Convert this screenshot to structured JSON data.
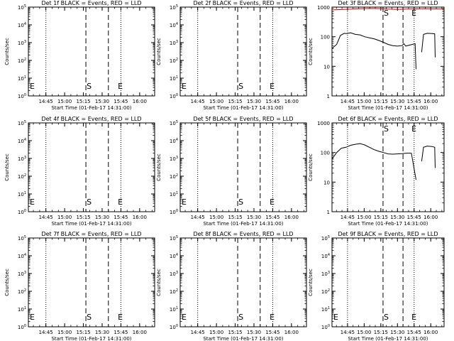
{
  "chart_data": [
    {
      "type": "line",
      "title": "Det 1f BLACK = Events, RED = LLD",
      "ylabel": "Counts/sec",
      "xlabel": "Start Time (01-Feb-17 14:31:00)",
      "yscale": "log",
      "ylim": [
        1,
        100000
      ],
      "ytick_labels": [
        "10^0",
        "10^1",
        "10^2",
        "10^3",
        "10^4",
        "10^5"
      ],
      "xtick_labels": [
        "14:45",
        "15:00",
        "15:15",
        "15:30",
        "15:45",
        "16:00"
      ],
      "dotted_lines_at": [
        "14:45",
        "15:45"
      ],
      "dashed_lines_at": [
        "15:17",
        "15:35"
      ],
      "markers": [
        {
          "label": "E",
          "at": "14:31"
        },
        {
          "label": "S",
          "at": "15:17"
        },
        {
          "label": "E",
          "at": "15:42"
        }
      ],
      "series": []
    },
    {
      "type": "line",
      "title": "Det 2f BLACK = Events, RED = LLD",
      "ylabel": "Counts/sec",
      "xlabel": "Start Time (01-Feb-17 14:31:00)",
      "yscale": "log",
      "ylim": [
        1,
        100000
      ],
      "ytick_labels": [
        "10^0",
        "10^1",
        "10^2",
        "10^3",
        "10^4",
        "10^5"
      ],
      "xtick_labels": [
        "14:45",
        "15:00",
        "15:15",
        "15:30",
        "15:45",
        "16:00"
      ],
      "dotted_lines_at": [
        "14:45",
        "15:45"
      ],
      "dashed_lines_at": [
        "15:17",
        "15:35"
      ],
      "markers": [
        {
          "label": "E",
          "at": "14:31"
        },
        {
          "label": "S",
          "at": "15:17"
        },
        {
          "label": "E",
          "at": "15:42"
        }
      ],
      "series": []
    },
    {
      "type": "line",
      "title": "Det 3f BLACK = Events, RED = LLD",
      "ylabel": "Counts/sec",
      "xlabel": "Start Time (01-Feb-17 14:31:00)",
      "yscale": "log",
      "ylim": [
        1,
        1000
      ],
      "ytick_labels": [
        "1",
        "10",
        "100",
        "1000"
      ],
      "xtick_labels": [
        "14:45",
        "15:00",
        "15:15",
        "15:30",
        "15:45",
        "16:00"
      ],
      "dotted_lines_at": [
        "14:45",
        "15:45"
      ],
      "dashed_lines_at": [
        "15:17",
        "15:35"
      ],
      "markers": [
        {
          "label": "S",
          "at": "15:17"
        },
        {
          "label": "E",
          "at": "15:42"
        }
      ],
      "series": [
        {
          "name": "BLACK",
          "color": "#000000",
          "segments": [
            [
              [
                0,
                10,
                40
              ],
              [
                0.5,
                10,
                55
              ],
              [
                0.9,
                10,
                110
              ],
              [
                1.3,
                10,
                130
              ],
              [
                1.5,
                10,
                128
              ],
              [
                2.0,
                10,
                135
              ],
              [
                2.5,
                10,
                120
              ],
              [
                3.0,
                10,
                115
              ],
              [
                3.5,
                10,
                100
              ],
              [
                4.0,
                10,
                92
              ],
              [
                4.5,
                10,
                85
              ],
              [
                5.0,
                10,
                75
              ],
              [
                5.5,
                10,
                65
              ],
              [
                6.0,
                10,
                55
              ],
              [
                6.5,
                10,
                50
              ],
              [
                7.0,
                10,
                48
              ],
              [
                7.5,
                10,
                50
              ],
              [
                7.7,
                10,
                58
              ],
              [
                7.9,
                10,
                48
              ],
              [
                8.3,
                10,
                52
              ],
              [
                8.6,
                10,
                55
              ],
              [
                8.9,
                10,
                58
              ],
              [
                9.0,
                10,
                8
              ]
            ],
            [
              [
                9.6,
                10,
                30
              ],
              [
                9.8,
                10,
                120
              ],
              [
                10.2,
                10,
                130
              ],
              [
                10.7,
                10,
                128
              ],
              [
                11.0,
                10,
                125
              ],
              [
                11.05,
                10,
                20
              ]
            ]
          ]
        },
        {
          "name": "RED",
          "color": "#dd0000",
          "segments": [
            [
              [
                0,
                10,
                800
              ],
              [
                1.0,
                10,
                830
              ],
              [
                2.0,
                10,
                850
              ],
              [
                3.0,
                10,
                880
              ],
              [
                4.0,
                10,
                900
              ],
              [
                5.0,
                10,
                890
              ],
              [
                6.0,
                10,
                860
              ],
              [
                7.0,
                10,
                840
              ],
              [
                8.0,
                10,
                860
              ],
              [
                9.0,
                10,
                870
              ],
              [
                10.0,
                10,
                880
              ],
              [
                11.0,
                10,
                870
              ],
              [
                12.0,
                10,
                860
              ]
            ]
          ]
        }
      ]
    },
    {
      "type": "line",
      "title": "Det 4f BLACK = Events, RED = LLD",
      "ylabel": "Counts/sec",
      "xlabel": "Start Time (01-Feb-17 14:31:00)",
      "yscale": "log",
      "ylim": [
        1,
        100000
      ],
      "ytick_labels": [
        "10^0",
        "10^1",
        "10^2",
        "10^3",
        "10^4",
        "10^5"
      ],
      "xtick_labels": [
        "14:45",
        "15:00",
        "15:15",
        "15:30",
        "15:45",
        "16:00"
      ],
      "dotted_lines_at": [
        "14:45",
        "15:45"
      ],
      "dashed_lines_at": [
        "15:17",
        "15:35"
      ],
      "markers": [
        {
          "label": "E",
          "at": "14:31"
        },
        {
          "label": "S",
          "at": "15:17"
        },
        {
          "label": "E",
          "at": "15:42"
        }
      ],
      "series": []
    },
    {
      "type": "line",
      "title": "Det 5f BLACK = Events, RED = LLD",
      "ylabel": "Counts/sec",
      "xlabel": "Start Time (01-Feb-17 14:31:00)",
      "yscale": "log",
      "ylim": [
        1,
        100000
      ],
      "ytick_labels": [
        "10^0",
        "10^1",
        "10^2",
        "10^3",
        "10^4",
        "10^5"
      ],
      "xtick_labels": [
        "14:45",
        "15:00",
        "15:15",
        "15:30",
        "15:45",
        "16:00"
      ],
      "dotted_lines_at": [
        "14:45",
        "15:45"
      ],
      "dashed_lines_at": [
        "15:17",
        "15:35"
      ],
      "markers": [
        {
          "label": "E",
          "at": "14:31"
        },
        {
          "label": "S",
          "at": "15:17"
        },
        {
          "label": "E",
          "at": "15:42"
        }
      ],
      "series": []
    },
    {
      "type": "line",
      "title": "Det 6f BLACK = Events, RED = LLD",
      "ylabel": "Counts/sec",
      "xlabel": "Start Time (01-Feb-17 14:31:00)",
      "yscale": "log",
      "ylim": [
        1,
        1000
      ],
      "ytick_labels": [
        "1",
        "10",
        "100",
        "1000"
      ],
      "xtick_labels": [
        "14:45",
        "15:00",
        "15:15",
        "15:30",
        "15:45",
        "16:00"
      ],
      "dotted_lines_at": [
        "14:45",
        "15:45"
      ],
      "dashed_lines_at": [
        "15:17",
        "15:35"
      ],
      "markers": [
        {
          "label": "S",
          "at": "15:17"
        },
        {
          "label": "E",
          "at": "15:42"
        }
      ],
      "series": [
        {
          "name": "BLACK",
          "color": "#000000",
          "segments": [
            [
              [
                0,
                10,
                60
              ],
              [
                0.5,
                10,
                100
              ],
              [
                1.0,
                10,
                140
              ],
              [
                1.5,
                10,
                150
              ],
              [
                2.0,
                10,
                175
              ],
              [
                2.5,
                10,
                190
              ],
              [
                3.0,
                10,
                200
              ],
              [
                3.5,
                10,
                180
              ],
              [
                4.0,
                10,
                150
              ],
              [
                4.5,
                10,
                125
              ],
              [
                5.0,
                10,
                110
              ],
              [
                5.5,
                10,
                100
              ],
              [
                6.0,
                10,
                90
              ],
              [
                6.5,
                10,
                88
              ],
              [
                7.0,
                10,
                90
              ],
              [
                7.5,
                10,
                92
              ],
              [
                8.0,
                10,
                95
              ],
              [
                8.5,
                10,
                95
              ],
              [
                9.0,
                10,
                12
              ]
            ],
            [
              [
                9.6,
                10,
                50
              ],
              [
                9.8,
                10,
                150
              ],
              [
                10.2,
                10,
                165
              ],
              [
                10.7,
                10,
                160
              ],
              [
                11.0,
                10,
                150
              ],
              [
                11.05,
                10,
                30
              ]
            ]
          ]
        }
      ]
    },
    {
      "type": "line",
      "title": "Det 7f BLACK = Events, RED = LLD",
      "ylabel": "Counts/sec",
      "xlabel": "Start Time (01-Feb-17 14:31:00)",
      "yscale": "log",
      "ylim": [
        1,
        100000
      ],
      "ytick_labels": [
        "10^0",
        "10^1",
        "10^2",
        "10^3",
        "10^4",
        "10^5"
      ],
      "xtick_labels": [
        "14:45",
        "15:00",
        "15:15",
        "15:30",
        "15:45",
        "16:00"
      ],
      "dotted_lines_at": [
        "14:45",
        "15:45"
      ],
      "dashed_lines_at": [
        "15:17",
        "15:35"
      ],
      "markers": [
        {
          "label": "E",
          "at": "14:31"
        },
        {
          "label": "S",
          "at": "15:17"
        },
        {
          "label": "E",
          "at": "15:42"
        }
      ],
      "series": []
    },
    {
      "type": "line",
      "title": "Det 8f BLACK = Events, RED = LLD",
      "ylabel": "Counts/sec",
      "xlabel": "Start Time (01-Feb-17 14:31:00)",
      "yscale": "log",
      "ylim": [
        1,
        100000
      ],
      "ytick_labels": [
        "10^0",
        "10^1",
        "10^2",
        "10^3",
        "10^4",
        "10^5"
      ],
      "xtick_labels": [
        "14:45",
        "15:00",
        "15:15",
        "15:30",
        "15:45",
        "16:00"
      ],
      "dotted_lines_at": [
        "14:45",
        "15:45"
      ],
      "dashed_lines_at": [
        "15:17",
        "15:35"
      ],
      "markers": [
        {
          "label": "E",
          "at": "14:31"
        },
        {
          "label": "S",
          "at": "15:17"
        },
        {
          "label": "E",
          "at": "15:42"
        }
      ],
      "series": []
    },
    {
      "type": "line",
      "title": "Det 9f BLACK = Events, RED = LLD",
      "ylabel": "Counts/sec",
      "xlabel": "Start Time (01-Feb-17 14:31:00)",
      "yscale": "log",
      "ylim": [
        1,
        100000
      ],
      "ytick_labels": [
        "10^0",
        "10^1",
        "10^2",
        "10^3",
        "10^4",
        "10^5"
      ],
      "xtick_labels": [
        "14:45",
        "15:00",
        "15:15",
        "15:30",
        "15:45",
        "16:00"
      ],
      "dotted_lines_at": [
        "14:45",
        "15:45"
      ],
      "dashed_lines_at": [
        "15:17",
        "15:35"
      ],
      "markers": [
        {
          "label": "E",
          "at": "14:31"
        },
        {
          "label": "S",
          "at": "15:17"
        },
        {
          "label": "E",
          "at": "15:42"
        }
      ],
      "series": []
    }
  ]
}
